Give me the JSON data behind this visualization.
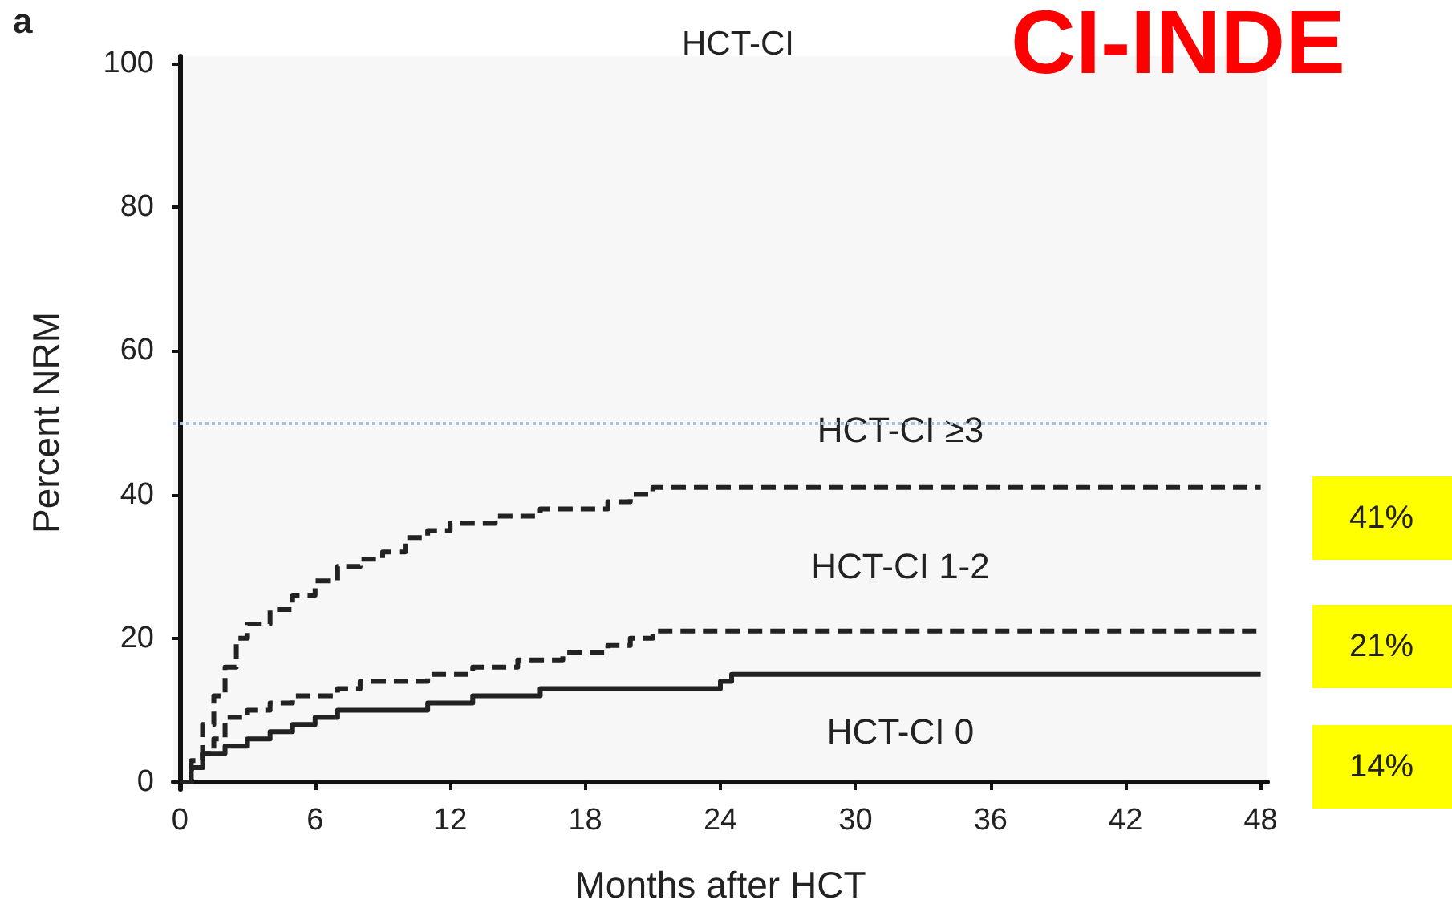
{
  "chart_data": {
    "type": "step",
    "title": "HCT-CI",
    "xlabel": "Months after HCT",
    "ylabel": "Percent NRM",
    "annotations": [
      "a",
      "CI-INDE",
      "41%",
      "21%",
      "14%"
    ],
    "xlim": [
      -0.3,
      48.3
    ],
    "xticks": [
      0,
      6,
      12,
      18,
      24,
      30,
      36,
      42,
      48
    ],
    "ylim": [
      -1,
      101
    ],
    "yticks": [
      0,
      20,
      40,
      60,
      80,
      100
    ],
    "legend": false,
    "ref_lines": [
      {
        "axis": "y",
        "value": 50,
        "color": "#a8bfe0",
        "line_style": "dotted"
      }
    ],
    "series": [
      {
        "name": "HCT-CI ≥3",
        "color": "#222222",
        "line_style": "dashed",
        "x": [
          0,
          0.5,
          1,
          1.5,
          2,
          2.5,
          3,
          4,
          5,
          6,
          7,
          8,
          9,
          10,
          11,
          12,
          14,
          16,
          18,
          19,
          20,
          21,
          48
        ],
        "values": [
          0,
          3,
          8,
          12,
          16,
          20,
          22,
          24,
          26,
          28,
          30,
          31,
          32,
          34,
          35,
          36,
          37,
          38,
          38,
          39,
          40,
          41,
          41
        ]
      },
      {
        "name": "HCT-CI 1-2",
        "color": "#222222",
        "line_style": "dashed",
        "x": [
          0,
          0.5,
          1,
          1.5,
          2,
          3,
          4,
          5,
          7,
          8,
          11,
          13,
          15,
          17,
          19,
          20,
          21,
          48
        ],
        "values": [
          0,
          2,
          4,
          6,
          9,
          10,
          11,
          12,
          13,
          14,
          15,
          16,
          17,
          18,
          19,
          20,
          21,
          21
        ]
      },
      {
        "name": "HCT-CI 0",
        "color": "#222222",
        "line_style": "solid",
        "x": [
          0,
          0.5,
          1,
          2,
          3,
          4,
          5,
          6,
          7,
          11,
          13,
          16,
          24,
          24.5,
          48
        ],
        "values": [
          0,
          2,
          4,
          5,
          6,
          7,
          8,
          9,
          10,
          11,
          12,
          13,
          14,
          15,
          15
        ]
      }
    ]
  }
}
